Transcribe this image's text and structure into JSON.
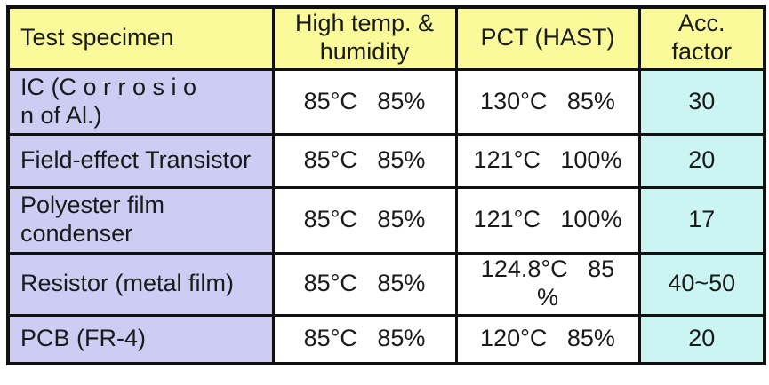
{
  "table": {
    "colors": {
      "header_bg": "#fafa9a",
      "specimen_bg": "#cdcdf4",
      "value_bg": "#ffffff",
      "acc_bg": "#cbf5f3",
      "border": "#111111"
    },
    "header": {
      "specimen": "Test specimen",
      "hth_line1": "High temp. &",
      "hth_line2": "humidity",
      "pct": "PCT (HAST)",
      "acc_line1": "Acc.",
      "acc_line2": "factor"
    },
    "rows": [
      {
        "specimen_line1": "IC (C o r r o s i o",
        "specimen_line2": "n of Al.)",
        "hth": "85°C   85%",
        "pct_line1": "130°C   85%",
        "pct_line2": "",
        "acc": "30"
      },
      {
        "specimen_line1": "Field-effect Transistor",
        "specimen_line2": "",
        "hth": "85°C   85%",
        "pct_line1": "121°C   100%",
        "pct_line2": "",
        "acc": "20"
      },
      {
        "specimen_line1": "Polyester film",
        "specimen_line2": "condenser",
        "hth": "85°C   85%",
        "pct_line1": "121°C   100%",
        "pct_line2": "",
        "acc": "17"
      },
      {
        "specimen_line1": "Resistor (metal film)",
        "specimen_line2": "",
        "hth": "85°C   85%",
        "pct_line1": "124.8°C   85",
        "pct_line2": "%",
        "acc": "40~50"
      },
      {
        "specimen_line1": "PCB (FR-4)",
        "specimen_line2": "",
        "hth": "85°C   85%",
        "pct_line1": "120°C   85%",
        "pct_line2": "",
        "acc": "20"
      }
    ]
  },
  "chart_data": {
    "type": "table",
    "title": "",
    "columns": [
      "Test specimen",
      "High temp. & humidity",
      "PCT (HAST)",
      "Acc. factor"
    ],
    "rows": [
      [
        "IC (Corrosion of Al.)",
        "85°C 85%",
        "130°C 85%",
        "30"
      ],
      [
        "Field-effect Transistor",
        "85°C 85%",
        "121°C 100%",
        "20"
      ],
      [
        "Polyester film condenser",
        "85°C 85%",
        "121°C 100%",
        "17"
      ],
      [
        "Resistor (metal film)",
        "85°C 85%",
        "124.8°C 85%",
        "40~50"
      ],
      [
        "PCB (FR-4)",
        "85°C 85%",
        "120°C 85%",
        "20"
      ]
    ],
    "column_colors": {
      "header": "#fafa9a",
      "specimen_column": "#cdcdf4",
      "condition_columns": "#ffffff",
      "acc_factor_column": "#cbf5f3"
    }
  }
}
